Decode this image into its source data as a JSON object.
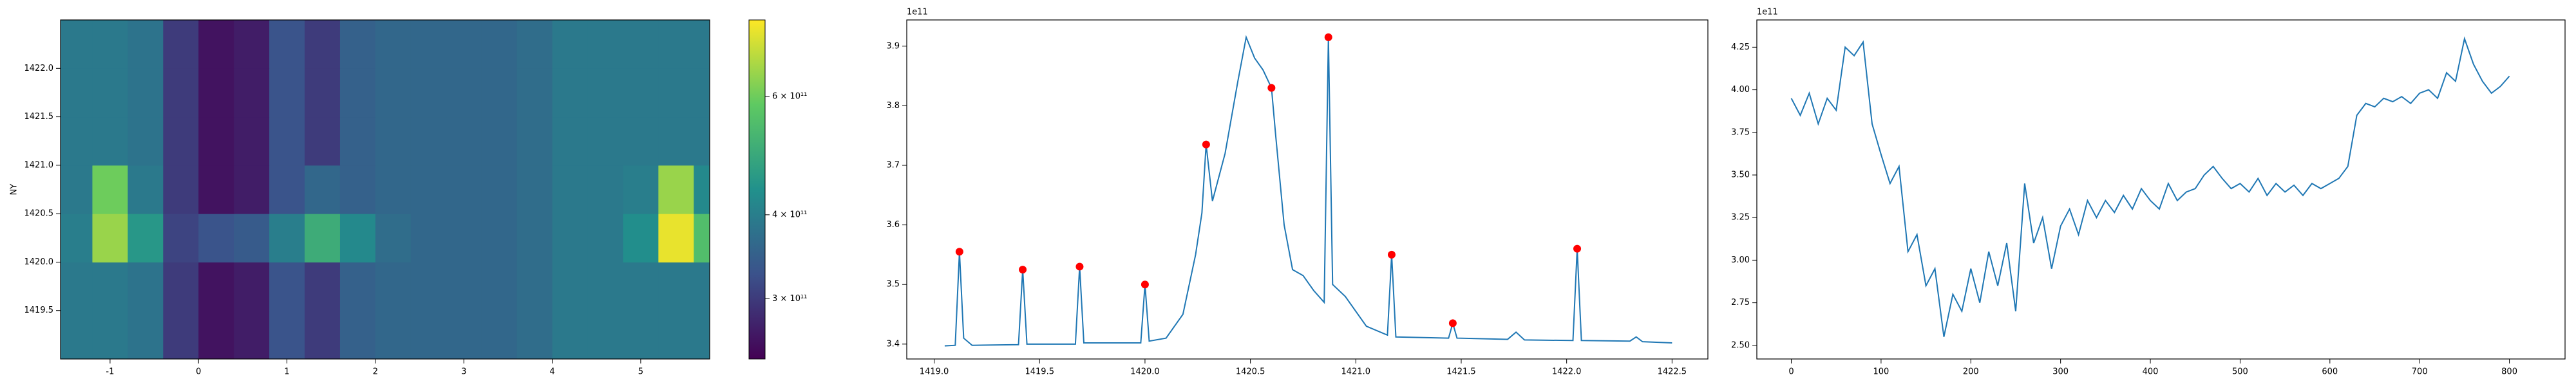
{
  "chart_data": [
    {
      "type": "heatmap",
      "y_label": "NY",
      "colormap": "viridis",
      "log_color": true,
      "xlim": [
        -1.56,
        5.78
      ],
      "ylim": [
        1419.0,
        1422.5
      ],
      "xticks": [
        -1,
        0,
        1,
        2,
        3,
        4,
        5
      ],
      "yticks": [
        1419.5,
        {
          "value": 1420,
          "label": "1420.0"
        },
        1420.5,
        {
          "value": 1421,
          "label": "1421.0"
        },
        1421.5,
        {
          "value": 1422,
          "label": "1422.0"
        }
      ],
      "clim": [
        244000000000.0,
        780000000000.0
      ],
      "cticks": [
        {
          "value": 300000000000.0,
          "label": "3 × 10¹¹"
        },
        {
          "value": 400000000000.0,
          "label": "4 × 10¹¹"
        },
        {
          "value": 600000000000.0,
          "label": "6 × 10¹¹"
        }
      ],
      "x": [
        -1.4,
        -1.0,
        -0.6,
        -0.2,
        0.2,
        0.6,
        1.0,
        1.4,
        1.8,
        2.2,
        2.6,
        3.0,
        3.4,
        3.8,
        4.2,
        4.6,
        5.0,
        5.4,
        5.8
      ],
      "y": [
        1419.25,
        1419.75,
        1420.25,
        1420.75,
        1421.25,
        1421.75,
        1422.25
      ],
      "z": [
        [
          390000000000.0,
          390000000000.0,
          380000000000.0,
          300000000000.0,
          260000000000.0,
          270000000000.0,
          330000000000.0,
          300000000000.0,
          350000000000.0,
          360000000000.0,
          360000000000.0,
          360000000000.0,
          360000000000.0,
          370000000000.0,
          390000000000.0,
          390000000000.0,
          390000000000.0,
          390000000000.0,
          390000000000.0
        ],
        [
          390000000000.0,
          390000000000.0,
          380000000000.0,
          300000000000.0,
          260000000000.0,
          270000000000.0,
          330000000000.0,
          300000000000.0,
          350000000000.0,
          360000000000.0,
          360000000000.0,
          360000000000.0,
          360000000000.0,
          370000000000.0,
          390000000000.0,
          390000000000.0,
          390000000000.0,
          390000000000.0,
          390000000000.0
        ],
        [
          400000000000.0,
          650000000000.0,
          450000000000.0,
          310000000000.0,
          330000000000.0,
          340000000000.0,
          400000000000.0,
          500000000000.0,
          420000000000.0,
          370000000000.0,
          360000000000.0,
          360000000000.0,
          360000000000.0,
          370000000000.0,
          390000000000.0,
          390000000000.0,
          430000000000.0,
          750000000000.0,
          550000000000.0
        ],
        [
          390000000000.0,
          600000000000.0,
          390000000000.0,
          300000000000.0,
          260000000000.0,
          270000000000.0,
          330000000000.0,
          360000000000.0,
          350000000000.0,
          360000000000.0,
          360000000000.0,
          360000000000.0,
          360000000000.0,
          370000000000.0,
          390000000000.0,
          390000000000.0,
          400000000000.0,
          650000000000.0,
          420000000000.0
        ],
        [
          390000000000.0,
          390000000000.0,
          380000000000.0,
          300000000000.0,
          260000000000.0,
          270000000000.0,
          330000000000.0,
          300000000000.0,
          350000000000.0,
          360000000000.0,
          360000000000.0,
          360000000000.0,
          360000000000.0,
          370000000000.0,
          390000000000.0,
          390000000000.0,
          390000000000.0,
          390000000000.0,
          390000000000.0
        ],
        [
          390000000000.0,
          390000000000.0,
          380000000000.0,
          300000000000.0,
          260000000000.0,
          270000000000.0,
          330000000000.0,
          300000000000.0,
          350000000000.0,
          360000000000.0,
          360000000000.0,
          360000000000.0,
          360000000000.0,
          370000000000.0,
          390000000000.0,
          390000000000.0,
          390000000000.0,
          390000000000.0,
          390000000000.0
        ],
        [
          390000000000.0,
          390000000000.0,
          380000000000.0,
          300000000000.0,
          260000000000.0,
          270000000000.0,
          330000000000.0,
          300000000000.0,
          350000000000.0,
          360000000000.0,
          360000000000.0,
          360000000000.0,
          360000000000.0,
          370000000000.0,
          390000000000.0,
          390000000000.0,
          390000000000.0,
          390000000000.0,
          390000000000.0
        ]
      ]
    },
    {
      "type": "line",
      "y_offset_label": "1e11",
      "xlim": [
        1418.87,
        1422.67
      ],
      "ylim": [
        3.375,
        3.944
      ],
      "xticks": [
        {
          "value": 1419,
          "label": "1419.0"
        },
        1419.5,
        {
          "value": 1420,
          "label": "1420.0"
        },
        1420.5,
        {
          "value": 1421,
          "label": "1421.0"
        },
        1421.5,
        {
          "value": 1422,
          "label": "1422.0"
        },
        1422.5
      ],
      "yticks": [
        3.4,
        3.5,
        3.6,
        3.7,
        3.8,
        3.9
      ],
      "series": [
        {
          "style": "line",
          "color": "#1f77b4",
          "x": [
            1419.05,
            1419.1,
            1419.12,
            1419.14,
            1419.18,
            1419.4,
            1419.42,
            1419.44,
            1419.67,
            1419.69,
            1419.71,
            1419.98,
            1420.0,
            1420.02,
            1420.1,
            1420.18,
            1420.24,
            1420.27,
            1420.29,
            1420.32,
            1420.38,
            1420.44,
            1420.48,
            1420.52,
            1420.56,
            1420.6,
            1420.62,
            1420.66,
            1420.7,
            1420.75,
            1420.8,
            1420.85,
            1420.87,
            1420.89,
            1420.95,
            1421.05,
            1421.15,
            1421.17,
            1421.19,
            1421.44,
            1421.46,
            1421.48,
            1421.72,
            1421.76,
            1421.8,
            1422.03,
            1422.05,
            1422.07,
            1422.3,
            1422.33,
            1422.36,
            1422.5
          ],
          "values": [
            3.397,
            3.398,
            3.555,
            3.41,
            3.398,
            3.399,
            3.525,
            3.4,
            3.4,
            3.53,
            3.402,
            3.402,
            3.5,
            3.405,
            3.41,
            3.45,
            3.55,
            3.62,
            3.735,
            3.64,
            3.72,
            3.84,
            3.915,
            3.88,
            3.86,
            3.83,
            3.75,
            3.6,
            3.525,
            3.515,
            3.49,
            3.47,
            3.915,
            3.5,
            3.48,
            3.43,
            3.415,
            3.55,
            3.412,
            3.41,
            3.435,
            3.41,
            3.408,
            3.42,
            3.407,
            3.406,
            3.56,
            3.406,
            3.405,
            3.412,
            3.404,
            3.402
          ]
        },
        {
          "style": "markers",
          "color": "#ff0000",
          "x": [
            1419.12,
            1419.42,
            1419.69,
            1420.0,
            1420.29,
            1420.6,
            1420.87,
            1421.17,
            1421.46,
            1422.05
          ],
          "values": [
            3.555,
            3.525,
            3.53,
            3.5,
            3.735,
            3.83,
            3.915,
            3.55,
            3.435,
            3.56
          ]
        }
      ]
    },
    {
      "type": "line",
      "y_offset_label": "1e11",
      "xlim": [
        -38.4,
        862
      ],
      "ylim": [
        2.42,
        4.41
      ],
      "xticks": [
        0,
        100,
        200,
        300,
        400,
        500,
        600,
        700,
        800
      ],
      "yticks": [
        {
          "value": 2.5,
          "label": "2.50"
        },
        2.75,
        {
          "value": 3,
          "label": "3.00"
        },
        3.25,
        {
          "value": 3.5,
          "label": "3.50"
        },
        3.75,
        {
          "value": 4,
          "label": "4.00"
        },
        4.25
      ],
      "series": [
        {
          "style": "line",
          "color": "#1f77b4",
          "x": [
            0,
            10,
            20,
            30,
            40,
            50,
            60,
            70,
            80,
            90,
            100,
            110,
            120,
            130,
            140,
            150,
            160,
            170,
            180,
            190,
            200,
            210,
            220,
            230,
            240,
            250,
            260,
            270,
            280,
            290,
            300,
            310,
            320,
            330,
            340,
            350,
            360,
            370,
            380,
            390,
            400,
            410,
            420,
            430,
            440,
            450,
            460,
            470,
            480,
            490,
            500,
            510,
            520,
            530,
            540,
            550,
            560,
            570,
            580,
            590,
            600,
            610,
            620,
            630,
            640,
            650,
            660,
            670,
            680,
            690,
            700,
            710,
            720,
            730,
            740,
            750,
            760,
            770,
            780,
            790,
            800
          ],
          "values": [
            3.95,
            3.85,
            3.98,
            3.8,
            3.95,
            3.88,
            4.25,
            4.2,
            4.28,
            3.8,
            3.62,
            3.45,
            3.55,
            3.05,
            3.15,
            2.85,
            2.95,
            2.55,
            2.8,
            2.7,
            2.95,
            2.75,
            3.05,
            2.85,
            3.1,
            2.7,
            3.45,
            3.1,
            3.25,
            2.95,
            3.2,
            3.3,
            3.15,
            3.35,
            3.25,
            3.35,
            3.28,
            3.38,
            3.3,
            3.42,
            3.35,
            3.3,
            3.45,
            3.35,
            3.4,
            3.42,
            3.5,
            3.55,
            3.48,
            3.42,
            3.45,
            3.4,
            3.48,
            3.38,
            3.45,
            3.4,
            3.44,
            3.38,
            3.45,
            3.42,
            3.45,
            3.48,
            3.55,
            3.85,
            3.92,
            3.9,
            3.95,
            3.93,
            3.96,
            3.92,
            3.98,
            4.0,
            3.95,
            4.1,
            4.05,
            4.3,
            4.15,
            4.05,
            3.98,
            4.02,
            4.08
          ]
        }
      ]
    }
  ]
}
